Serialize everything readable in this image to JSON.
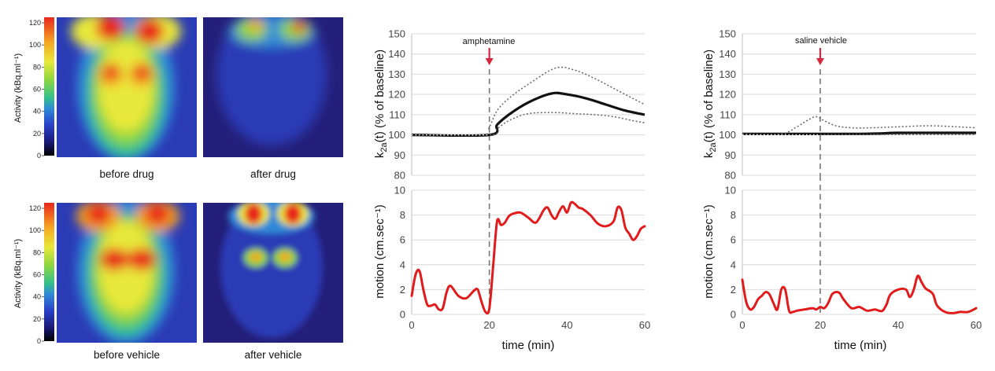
{
  "colors": {
    "mean_line": "#111111",
    "ci_line": "#666666",
    "motion_line": "#e11b1b",
    "marker_arrow": "#d7263d",
    "grid": "#d9d9d9",
    "heatmap_scale": [
      "#000000",
      "#1a1a7a",
      "#2a40c8",
      "#2f8ad8",
      "#35c08a",
      "#8fd640",
      "#e8e83a",
      "#f5a623",
      "#e8271d"
    ]
  },
  "images": {
    "colorbar_label": "Activity (kBq.ml⁻¹)",
    "captions": [
      "before drug",
      "after drug",
      "before vehicle",
      "after vehicle"
    ],
    "colorbar_ticks": [
      "0",
      "20",
      "40",
      "60",
      "80",
      "100",
      "120"
    ]
  },
  "chart_data": [
    {
      "type": "line",
      "ylabel_main": "k",
      "ylabel_sub": "2a",
      "ylabel_rest": "(t) (% of baseline)",
      "ylim": [
        80,
        150
      ],
      "yticks": [
        "150",
        "140",
        "130",
        "120",
        "110",
        "100",
        "90",
        "80"
      ],
      "xlim": [
        0,
        60
      ],
      "annotation": "amphetamine",
      "event_x": 20,
      "series": [
        {
          "role": "mean",
          "x": [
            0,
            20,
            22,
            25,
            30,
            36,
            40,
            45,
            50,
            55,
            60
          ],
          "y": [
            100,
            100,
            105,
            110,
            116,
            120.5,
            120,
            118,
            115,
            112,
            110
          ]
        },
        {
          "role": "upper",
          "x": [
            0,
            18,
            20,
            22,
            25,
            30,
            37,
            42,
            47,
            52,
            57,
            60
          ],
          "y": [
            100,
            100,
            104,
            112,
            118,
            125,
            133,
            132,
            128,
            123,
            118,
            115
          ]
        },
        {
          "role": "lower",
          "x": [
            0,
            20,
            22,
            25,
            30,
            37,
            42,
            47,
            52,
            57,
            60
          ],
          "y": [
            100,
            100,
            103,
            107,
            110.5,
            111,
            110.5,
            110,
            109,
            107,
            106
          ]
        }
      ]
    },
    {
      "type": "line",
      "ylabel": "motion (cm.sec⁻¹)",
      "xlabel": "time (min)",
      "ylim": [
        0,
        10
      ],
      "yticks": [
        "10",
        "8",
        "6",
        "4",
        "2",
        "0"
      ],
      "xlim": [
        0,
        60
      ],
      "xticks": [
        "0",
        "20",
        "40",
        "60"
      ],
      "event_x": 20,
      "series": [
        {
          "role": "motion",
          "x": [
            0,
            1,
            2,
            3,
            4,
            5,
            6,
            7,
            8,
            9,
            10,
            12,
            14,
            16,
            17,
            18,
            19,
            20,
            21,
            22,
            23,
            24,
            25,
            26,
            28,
            30,
            32,
            34,
            35,
            36,
            37,
            38,
            39,
            40,
            41,
            42,
            43,
            44,
            46,
            48,
            50,
            52,
            53,
            54,
            55,
            56,
            57,
            58,
            59,
            60
          ],
          "y": [
            1.5,
            3.2,
            3.5,
            2.0,
            0.8,
            0.7,
            0.8,
            0.4,
            0.5,
            1.8,
            2.3,
            1.5,
            1.3,
            1.9,
            2.0,
            1.0,
            0.2,
            0.5,
            4.0,
            7.5,
            7.2,
            7.4,
            7.9,
            8.1,
            8.2,
            7.8,
            7.4,
            8.4,
            8.6,
            8.0,
            7.7,
            8.3,
            8.7,
            8.2,
            9.0,
            8.9,
            8.6,
            8.5,
            8.0,
            7.3,
            7.1,
            7.5,
            8.6,
            8.4,
            7.0,
            6.5,
            6.0,
            6.3,
            6.9,
            7.1
          ]
        }
      ]
    },
    {
      "type": "line",
      "ylabel_main": "k",
      "ylabel_sub": "2a",
      "ylabel_rest": "(t) (% of baseline)",
      "ylim": [
        80,
        150
      ],
      "yticks": [
        "150",
        "140",
        "130",
        "120",
        "110",
        "100",
        "90",
        "80"
      ],
      "xlim": [
        0,
        60
      ],
      "annotation": "saline vehicle",
      "event_x": 20,
      "series": [
        {
          "role": "mean",
          "x": [
            0,
            30,
            40,
            50,
            60
          ],
          "y": [
            100.5,
            100.5,
            101,
            101,
            101
          ]
        },
        {
          "role": "upper",
          "x": [
            0,
            10,
            14,
            17,
            19,
            21,
            24,
            28,
            33,
            40,
            48,
            55,
            60
          ],
          "y": [
            100.5,
            100.5,
            104,
            107.5,
            109,
            107,
            104.5,
            103.5,
            103.5,
            104,
            104.5,
            104,
            103.5
          ]
        },
        {
          "role": "lower",
          "x": [
            0,
            60
          ],
          "y": [
            100.2,
            100.2
          ]
        }
      ]
    },
    {
      "type": "line",
      "ylabel": "motion (cm.sec⁻¹)",
      "xlabel": "time (min)",
      "ylim": [
        0,
        10
      ],
      "yticks": [
        "10",
        "8",
        "6",
        "4",
        "2",
        "0"
      ],
      "xlim": [
        0,
        60
      ],
      "xticks": [
        "0",
        "20",
        "40",
        "60"
      ],
      "event_x": 20,
      "series": [
        {
          "role": "motion",
          "x": [
            0,
            1,
            2,
            3,
            4,
            5,
            6,
            7,
            8,
            9,
            10,
            11,
            12,
            13,
            14,
            16,
            18,
            19,
            20,
            21,
            22,
            23,
            24,
            25,
            26,
            28,
            30,
            32,
            34,
            35,
            36,
            37,
            38,
            40,
            42,
            43,
            44,
            45,
            46,
            47,
            48,
            49,
            50,
            52,
            54,
            56,
            58,
            60
          ],
          "y": [
            2.8,
            1.0,
            0.4,
            0.6,
            1.2,
            1.5,
            1.8,
            1.6,
            0.9,
            0.4,
            2.0,
            2.0,
            0.3,
            0.2,
            0.3,
            0.4,
            0.5,
            0.4,
            0.6,
            0.5,
            0.9,
            1.6,
            1.8,
            1.7,
            1.2,
            0.5,
            0.6,
            0.3,
            0.4,
            0.3,
            0.3,
            0.8,
            1.6,
            2.0,
            2.0,
            1.4,
            2.0,
            3.1,
            2.6,
            2.1,
            1.9,
            1.6,
            0.7,
            0.2,
            0.1,
            0.2,
            0.2,
            0.5
          ]
        }
      ]
    }
  ]
}
